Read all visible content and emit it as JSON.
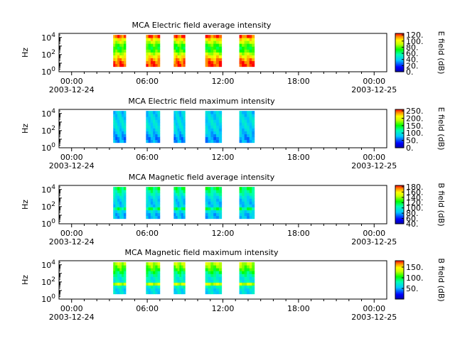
{
  "figure": {
    "panels_count": 4
  },
  "chart_data": [
    {
      "type": "heatmap",
      "title": "MCA  Electric field average intensity",
      "ylabel": "Hz",
      "ytick_labels": [
        "10^0",
        "10^2",
        "10^4"
      ],
      "yscale": "log",
      "ylim": [
        1,
        30000
      ],
      "xtick_labels": [
        {
          "time": "00:00",
          "date": "2003-12-24"
        },
        {
          "time": "06:00",
          "date": ""
        },
        {
          "time": "12:00",
          "date": ""
        },
        {
          "time": "18:00",
          "date": ""
        },
        {
          "time": "00:00",
          "date": "2003-12-25"
        }
      ],
      "xlim_hours": [
        -1,
        25
      ],
      "colorbar": {
        "label": "E field (dB)",
        "ticks": [
          "0.",
          "20.",
          "40.",
          "60.",
          "80.",
          "100.",
          "120."
        ],
        "range": [
          0,
          125
        ]
      },
      "data_segments_hours": [
        [
          3.3,
          4.3
        ],
        [
          5.9,
          7.0
        ],
        [
          8.1,
          9.0
        ],
        [
          10.6,
          11.9
        ],
        [
          13.3,
          14.5
        ]
      ],
      "y_profile": [
        0.95,
        0.82,
        0.72,
        0.62,
        0.57,
        0.62,
        0.72,
        0.82,
        0.9,
        0.95,
        0.97
      ]
    },
    {
      "type": "heatmap",
      "title": "MCA  Electric field maximum intensity",
      "ylabel": "Hz",
      "ytick_labels": [
        "10^0",
        "10^2",
        "10^4"
      ],
      "yscale": "log",
      "ylim": [
        1,
        30000
      ],
      "xtick_labels": [
        {
          "time": "00:00",
          "date": "2003-12-24"
        },
        {
          "time": "06:00",
          "date": ""
        },
        {
          "time": "12:00",
          "date": ""
        },
        {
          "time": "18:00",
          "date": ""
        },
        {
          "time": "00:00",
          "date": "2003-12-25"
        }
      ],
      "xlim_hours": [
        -1,
        25
      ],
      "colorbar": {
        "label": "E field (dB)",
        "ticks": [
          "0.",
          "50.",
          "100.",
          "150.",
          "200.",
          "250."
        ],
        "range": [
          0,
          260
        ]
      },
      "data_segments_hours": [
        [
          3.3,
          4.3
        ],
        [
          5.9,
          7.0
        ],
        [
          8.1,
          9.0
        ],
        [
          10.6,
          11.9
        ],
        [
          13.3,
          14.5
        ]
      ],
      "y_profile": [
        0.32,
        0.33,
        0.34,
        0.35,
        0.35,
        0.35,
        0.33,
        0.31,
        0.28,
        0.25,
        0.27
      ]
    },
    {
      "type": "heatmap",
      "title": "MCA  Magnetic field average intensity",
      "ylabel": "Hz",
      "ytick_labels": [
        "10^0",
        "10^2",
        "10^4"
      ],
      "yscale": "log",
      "ylim": [
        1,
        30000
      ],
      "xtick_labels": [
        {
          "time": "00:00",
          "date": "2003-12-24"
        },
        {
          "time": "06:00",
          "date": ""
        },
        {
          "time": "12:00",
          "date": ""
        },
        {
          "time": "18:00",
          "date": ""
        },
        {
          "time": "00:00",
          "date": "2003-12-25"
        }
      ],
      "xlim_hours": [
        -1,
        25
      ],
      "colorbar": {
        "label": "B field (dB)",
        "ticks": [
          "40.",
          "60.",
          "80.",
          "100.",
          "120.",
          "140.",
          "160.",
          "180."
        ],
        "range": [
          40,
          185
        ]
      },
      "data_segments_hours": [
        [
          3.3,
          4.3
        ],
        [
          5.9,
          7.0
        ],
        [
          8.1,
          9.0
        ],
        [
          10.6,
          11.9
        ],
        [
          13.3,
          14.5
        ]
      ],
      "y_profile": [
        0.52,
        0.47,
        0.42,
        0.36,
        0.33,
        0.32,
        0.33,
        0.5,
        0.35,
        0.3,
        0.3
      ]
    },
    {
      "type": "heatmap",
      "title": "MCA  Magnetic field maximum intensity",
      "ylabel": "Hz",
      "ytick_labels": [
        "10^0",
        "10^2",
        "10^4"
      ],
      "yscale": "log",
      "ylim": [
        1,
        30000
      ],
      "xtick_labels": [
        {
          "time": "00:00",
          "date": "2003-12-24"
        },
        {
          "time": "06:00",
          "date": ""
        },
        {
          "time": "12:00",
          "date": ""
        },
        {
          "time": "18:00",
          "date": ""
        },
        {
          "time": "00:00",
          "date": "2003-12-25"
        }
      ],
      "xlim_hours": [
        -1,
        25
      ],
      "colorbar": {
        "label": "B field (dB)",
        "ticks": [
          "50.",
          "100.",
          "150."
        ],
        "range": [
          0,
          180
        ]
      },
      "data_segments_hours": [
        [
          3.3,
          4.3
        ],
        [
          5.9,
          7.0
        ],
        [
          8.1,
          9.0
        ],
        [
          10.6,
          11.9
        ],
        [
          13.3,
          14.5
        ]
      ],
      "y_profile": [
        0.72,
        0.66,
        0.6,
        0.52,
        0.45,
        0.4,
        0.4,
        0.72,
        0.42,
        0.35,
        0.35
      ]
    }
  ]
}
